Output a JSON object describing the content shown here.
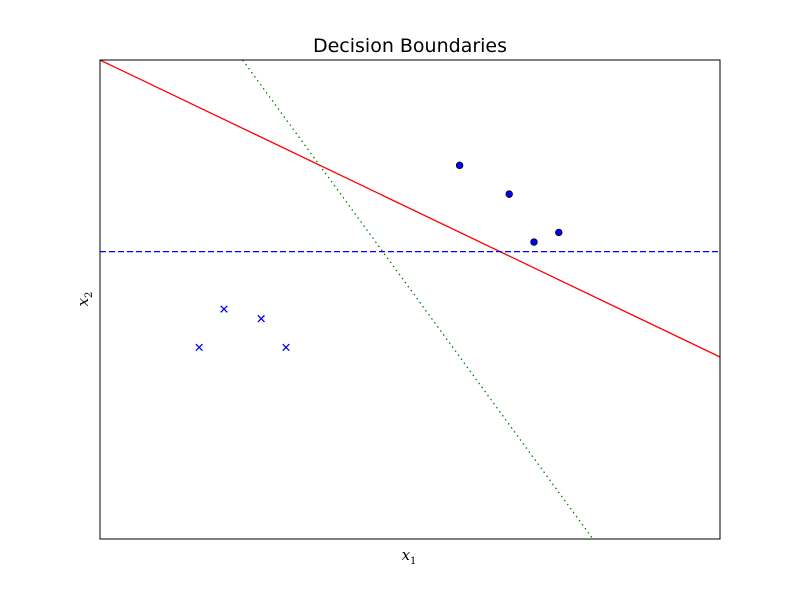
{
  "chart_data": {
    "type": "scatter",
    "title": "Decision Boundaries",
    "xlabel": {
      "base": "x",
      "sub": "1"
    },
    "ylabel": {
      "base": "x",
      "sub": "2"
    },
    "xlim": [
      0,
      10
    ],
    "ylim": [
      0,
      10
    ],
    "ticks_visible": false,
    "grid": false,
    "series": [
      {
        "marker": "x",
        "color": "#0000ff",
        "points": [
          [
            1.6,
            4.0
          ],
          [
            2.0,
            4.8
          ],
          [
            2.6,
            4.6
          ],
          [
            3.0,
            4.0
          ]
        ]
      },
      {
        "marker": "o",
        "color": "#0000ff",
        "edge_color": "#000000",
        "points": [
          [
            5.8,
            7.8
          ],
          [
            6.6,
            7.2
          ],
          [
            7.0,
            6.2
          ],
          [
            7.4,
            6.4
          ]
        ]
      }
    ],
    "boundaries": [
      {
        "style": "solid",
        "color": "#ff0000",
        "from": [
          0.0,
          10.0
        ],
        "to": [
          10.0,
          3.8
        ]
      },
      {
        "style": "dashed",
        "color": "#0000ff",
        "from": [
          0.0,
          6.0
        ],
        "to": [
          10.0,
          6.0
        ]
      },
      {
        "style": "dotted",
        "color": "#008000",
        "from": [
          2.3,
          10.0
        ],
        "to": [
          7.95,
          0.0
        ]
      }
    ]
  }
}
